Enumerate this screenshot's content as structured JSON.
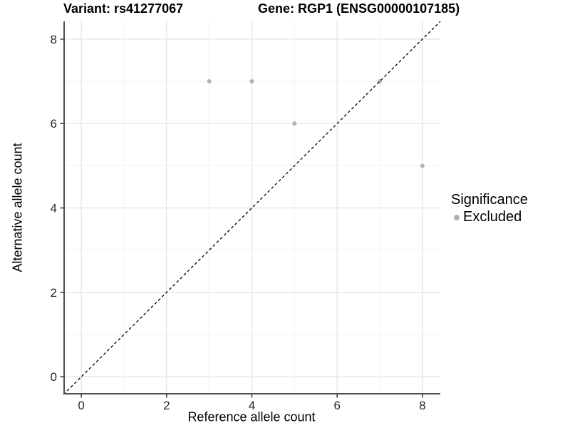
{
  "titles": {
    "variant": "Variant: rs41277067",
    "gene": "Gene: RGP1 (ENSG00000107185)"
  },
  "axes": {
    "x_label": "Reference allele count",
    "y_label": "Alternative allele count",
    "x_tick_labels": [
      "0",
      "2",
      "4",
      "6",
      "8"
    ],
    "y_tick_labels": [
      "0",
      "2",
      "4",
      "6",
      "8"
    ]
  },
  "legend": {
    "title": "Significance",
    "items": [
      {
        "label": "Excluded",
        "color": "#b1b1b1",
        "icon": "point-icon"
      }
    ]
  },
  "chart_data": {
    "type": "scatter",
    "title": "Variant: rs41277067 — Gene: RGP1 (ENSG00000107185)",
    "xlabel": "Reference allele count",
    "ylabel": "Alternative allele count",
    "series": [
      {
        "name": "Excluded",
        "color": "#b1b1b1",
        "points": [
          [
            3,
            7
          ],
          [
            4,
            7
          ],
          [
            5,
            6
          ],
          [
            7,
            7
          ],
          [
            8,
            5
          ]
        ]
      }
    ],
    "reference_line": {
      "type": "identity",
      "slope": 1,
      "intercept": 0,
      "style": "dashed",
      "color": "#000000"
    },
    "xlim": [
      -0.42,
      8.42
    ],
    "ylim": [
      -0.42,
      8.42
    ],
    "x_major_ticks": [
      0,
      2,
      4,
      6,
      8
    ],
    "y_major_ticks": [
      0,
      2,
      4,
      6,
      8
    ],
    "x_minor_ticks": [
      1,
      3,
      5,
      7
    ],
    "y_minor_ticks": [
      1,
      3,
      5,
      7
    ],
    "grid": "major+minor",
    "legend_position": "right",
    "point_radius_px": 3
  },
  "colors": {
    "background": "#ffffff",
    "grid_major": "#e3e3e3",
    "grid_minor": "#f1f1f1",
    "axis_line": "#4d4d4d",
    "tick_mark": "#333333",
    "tick_label": "#262626",
    "point": "#b1b1b1",
    "reference_line": "#000000"
  }
}
